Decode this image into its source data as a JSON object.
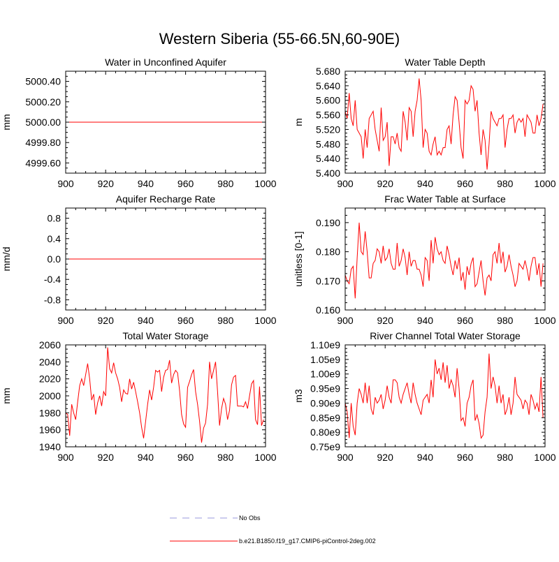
{
  "title": "Western Siberia (55-66.5N,60-90E)",
  "colors": {
    "model": "#ff0000",
    "obs": "#9999dd",
    "axis": "#000000"
  },
  "legend": {
    "obs_label": "No Obs",
    "model_label": "b.e21.B1850.f19_g17.CMIP6-piControl-2deg.002"
  },
  "chart_data": [
    {
      "type": "line",
      "title": "Water in Unconfined Aquifer",
      "ylabel": "mm",
      "xlim": [
        900,
        1000
      ],
      "ylim": [
        4999.5,
        5000.5
      ],
      "xticks": [
        900,
        920,
        940,
        960,
        980,
        1000
      ],
      "yticks": [
        4999.6,
        4999.8,
        5000.0,
        5000.2,
        5000.4
      ],
      "ytick_labels": [
        "4999.60",
        "4999.80",
        "5000.00",
        "5000.20",
        "5000.40"
      ],
      "series": [
        {
          "name": "b.e21.B1850.f19_g17.CMIP6-piControl-2deg.002",
          "x_start": 900,
          "values": [
            5000,
            5000,
            5000,
            5000,
            5000,
            5000,
            5000,
            5000,
            5000,
            5000,
            5000,
            5000,
            5000,
            5000,
            5000,
            5000,
            5000,
            5000,
            5000,
            5000,
            5000,
            5000,
            5000,
            5000,
            5000,
            5000,
            5000,
            5000,
            5000,
            5000,
            5000,
            5000,
            5000,
            5000,
            5000,
            5000,
            5000,
            5000,
            5000,
            5000,
            5000,
            5000,
            5000,
            5000,
            5000,
            5000,
            5000,
            5000,
            5000,
            5000,
            5000,
            5000,
            5000,
            5000,
            5000,
            5000,
            5000,
            5000,
            5000,
            5000,
            5000,
            5000,
            5000,
            5000,
            5000,
            5000,
            5000,
            5000,
            5000,
            5000,
            5000,
            5000,
            5000,
            5000,
            5000,
            5000,
            5000,
            5000,
            5000,
            5000,
            5000,
            5000,
            5000,
            5000,
            5000,
            5000,
            5000,
            5000,
            5000,
            5000,
            5000,
            5000,
            5000,
            5000,
            5000,
            5000,
            5000,
            5000,
            5000,
            5000
          ]
        }
      ]
    },
    {
      "type": "line",
      "title": "Water Table Depth",
      "ylabel": "m",
      "xlim": [
        900,
        1000
      ],
      "ylim": [
        5.4,
        5.68
      ],
      "xticks": [
        900,
        920,
        940,
        960,
        980,
        1000
      ],
      "yticks": [
        5.4,
        5.44,
        5.48,
        5.52,
        5.56,
        5.6,
        5.64,
        5.68
      ],
      "ytick_labels": [
        "5.400",
        "5.440",
        "5.480",
        "5.520",
        "5.560",
        "5.600",
        "5.640",
        "5.680"
      ],
      "series": [
        {
          "name": "b.e21.B1850.f19_g17.CMIP6-piControl-2deg.002",
          "x_start": 900,
          "values": [
            5.57,
            5.55,
            5.62,
            5.55,
            5.53,
            5.6,
            5.52,
            5.51,
            5.5,
            5.44,
            5.52,
            5.47,
            5.55,
            5.56,
            5.57,
            5.52,
            5.49,
            5.46,
            5.58,
            5.49,
            5.5,
            5.54,
            5.42,
            5.5,
            5.5,
            5.48,
            5.51,
            5.47,
            5.46,
            5.57,
            5.54,
            5.49,
            5.58,
            5.57,
            5.5,
            5.57,
            5.6,
            5.66,
            5.6,
            5.47,
            5.52,
            5.51,
            5.46,
            5.45,
            5.48,
            5.5,
            5.45,
            5.46,
            5.45,
            5.47,
            5.47,
            5.52,
            5.53,
            5.48,
            5.56,
            5.61,
            5.6,
            5.54,
            5.47,
            5.44,
            5.6,
            5.59,
            5.6,
            5.64,
            5.63,
            5.57,
            5.6,
            5.51,
            5.45,
            5.52,
            5.49,
            5.41,
            5.48,
            5.57,
            5.55,
            5.54,
            5.53,
            5.55,
            5.55,
            5.56,
            5.47,
            5.52,
            5.55,
            5.55,
            5.56,
            5.51,
            5.54,
            5.55,
            5.54,
            5.55,
            5.5,
            5.56,
            5.55,
            5.54,
            5.51,
            5.51,
            5.56,
            5.53,
            5.55,
            5.59
          ]
        }
      ]
    },
    {
      "type": "line",
      "title": "Aquifer Recharge Rate",
      "ylabel": "mm/d",
      "xlim": [
        900,
        1000
      ],
      "ylim": [
        -1.0,
        1.0
      ],
      "xticks": [
        900,
        920,
        940,
        960,
        980,
        1000
      ],
      "yticks": [
        -0.8,
        -0.4,
        0.0,
        0.4,
        0.8
      ],
      "ytick_labels": [
        "-0.8",
        "-0.4",
        "0.0",
        "0.4",
        "0.8"
      ],
      "series": [
        {
          "name": "b.e21.B1850.f19_g17.CMIP6-piControl-2deg.002",
          "x_start": 900,
          "values": [
            0,
            0,
            0,
            0,
            0,
            0,
            0,
            0,
            0,
            0,
            0,
            0,
            0,
            0,
            0,
            0,
            0,
            0,
            0,
            0,
            0,
            0,
            0,
            0,
            0,
            0,
            0,
            0,
            0,
            0,
            0,
            0,
            0,
            0,
            0,
            0,
            0,
            0,
            0,
            0,
            0,
            0,
            0,
            0,
            0,
            0,
            0,
            0,
            0,
            0,
            0,
            0,
            0,
            0,
            0,
            0,
            0,
            0,
            0,
            0,
            0,
            0,
            0,
            0,
            0,
            0,
            0,
            0,
            0,
            0,
            0,
            0,
            0,
            0,
            0,
            0,
            0,
            0,
            0,
            0,
            0,
            0,
            0,
            0,
            0,
            0,
            0,
            0,
            0,
            0,
            0,
            0,
            0,
            0,
            0,
            0,
            0,
            0,
            0,
            0
          ]
        }
      ]
    },
    {
      "type": "line",
      "title": "Frac Water Table at Surface",
      "ylabel": "unitless [0-1]",
      "xlim": [
        900,
        1000
      ],
      "ylim": [
        0.16,
        0.195
      ],
      "xticks": [
        900,
        920,
        940,
        960,
        980,
        1000
      ],
      "yticks": [
        0.16,
        0.17,
        0.18,
        0.19
      ],
      "ytick_labels": [
        "0.160",
        "0.170",
        "0.180",
        "0.190"
      ],
      "series": [
        {
          "name": "b.e21.B1850.f19_g17.CMIP6-piControl-2deg.002",
          "x_start": 900,
          "values": [
            0.172,
            0.17,
            0.169,
            0.174,
            0.175,
            0.164,
            0.178,
            0.19,
            0.18,
            0.179,
            0.187,
            0.18,
            0.171,
            0.171,
            0.176,
            0.177,
            0.181,
            0.18,
            0.176,
            0.182,
            0.177,
            0.178,
            0.181,
            0.176,
            0.174,
            0.174,
            0.183,
            0.175,
            0.177,
            0.181,
            0.178,
            0.172,
            0.18,
            0.175,
            0.177,
            0.177,
            0.174,
            0.174,
            0.172,
            0.168,
            0.178,
            0.177,
            0.17,
            0.184,
            0.176,
            0.185,
            0.181,
            0.179,
            0.18,
            0.177,
            0.176,
            0.182,
            0.179,
            0.175,
            0.172,
            0.177,
            0.174,
            0.178,
            0.17,
            0.173,
            0.167,
            0.175,
            0.172,
            0.176,
            0.178,
            0.168,
            0.169,
            0.173,
            0.177,
            0.17,
            0.165,
            0.171,
            0.172,
            0.17,
            0.179,
            0.18,
            0.176,
            0.183,
            0.176,
            0.18,
            0.173,
            0.175,
            0.179,
            0.175,
            0.172,
            0.168,
            0.17,
            0.176,
            0.175,
            0.174,
            0.177,
            0.174,
            0.17,
            0.175,
            0.178,
            0.178,
            0.172,
            0.176,
            0.168,
            0.176
          ]
        }
      ]
    },
    {
      "type": "line",
      "title": "Total Water Storage",
      "ylabel": "mm",
      "xlim": [
        900,
        1000
      ],
      "ylim": [
        1940,
        2060
      ],
      "xticks": [
        900,
        920,
        940,
        960,
        980,
        1000
      ],
      "yticks": [
        1940,
        1960,
        1980,
        2000,
        2020,
        2040,
        2060
      ],
      "ytick_labels": [
        "1940",
        "1960",
        "1980",
        "2000",
        "2020",
        "2040",
        "2060"
      ],
      "series": [
        {
          "name": "b.e21.B1850.f19_g17.CMIP6-piControl-2deg.002",
          "x_start": 900,
          "values": [
            1980,
            1978,
            1953,
            1990,
            1980,
            1972,
            1993,
            2012,
            2020,
            2012,
            2025,
            2038,
            2020,
            1995,
            2002,
            1978,
            1992,
            2000,
            1988,
            2005,
            2000,
            2057,
            2032,
            2027,
            2039,
            2027,
            2020,
            2010,
            1993,
            2007,
            2003,
            2002,
            2020,
            2008,
            2016,
            2005,
            1993,
            1980,
            1963,
            1950,
            1970,
            1990,
            2007,
            1995,
            2010,
            2030,
            2028,
            2030,
            2005,
            2022,
            2030,
            2031,
            2042,
            2015,
            2025,
            2030,
            2027,
            2006,
            1978,
            1967,
            1963,
            2010,
            2017,
            2025,
            2031,
            2005,
            1990,
            1970,
            1945,
            1962,
            1968,
            1990,
            2040,
            2020,
            2030,
            2040,
            2005,
            1965,
            1985,
            1997,
            1990,
            1972,
            1983,
            2013,
            2022,
            2024,
            1988,
            1988,
            1988,
            1987,
            1993,
            1985,
            2000,
            2014,
            2018,
            1972,
            1966,
            2011,
            1965,
            1972
          ]
        }
      ]
    },
    {
      "type": "line",
      "title": "River Channel Total Water Storage",
      "ylabel": "m3",
      "xlim": [
        900,
        1000
      ],
      "ylim": [
        0.75,
        1.1
      ],
      "xticks": [
        900,
        920,
        940,
        960,
        980,
        1000
      ],
      "yticks": [
        0.75,
        0.8,
        0.85,
        0.9,
        0.95,
        1.0,
        1.05,
        1.1
      ],
      "ytick_labels": [
        "0.75e9",
        "0.80e9",
        "0.85e9",
        "0.90e9",
        "0.95e9",
        "1.00e9",
        "1.05e9",
        "1.10e9"
      ],
      "series": [
        {
          "name": "b.e21.B1850.f19_g17.CMIP6-piControl-2deg.002",
          "x_start": 900,
          "values": [
            0.9,
            0.87,
            0.78,
            0.9,
            0.82,
            0.79,
            0.9,
            0.95,
            0.93,
            0.9,
            0.97,
            0.9,
            0.96,
            0.88,
            0.86,
            0.92,
            0.9,
            0.91,
            0.93,
            0.88,
            0.91,
            0.96,
            0.92,
            0.9,
            0.98,
            0.98,
            0.97,
            0.92,
            0.9,
            0.93,
            0.95,
            0.97,
            0.93,
            0.9,
            0.97,
            0.93,
            0.9,
            0.88,
            0.86,
            0.91,
            0.92,
            0.93,
            0.9,
            0.98,
            0.92,
            1.05,
            1.0,
            1.02,
            0.98,
            1.04,
            0.97,
            1.03,
            0.95,
            0.98,
            0.96,
            0.92,
            1.02,
            0.95,
            0.84,
            0.85,
            0.82,
            0.9,
            0.92,
            0.96,
            0.98,
            0.84,
            0.86,
            0.83,
            0.78,
            0.79,
            0.87,
            0.92,
            1.07,
            0.95,
            0.99,
            0.96,
            0.9,
            0.96,
            0.9,
            0.93,
            0.86,
            0.88,
            0.92,
            0.86,
            0.9,
            0.99,
            0.93,
            0.92,
            0.91,
            0.88,
            0.91,
            0.9,
            0.86,
            0.93,
            0.91,
            0.88,
            0.9,
            0.87,
            0.99,
            0.85
          ]
        }
      ]
    }
  ]
}
